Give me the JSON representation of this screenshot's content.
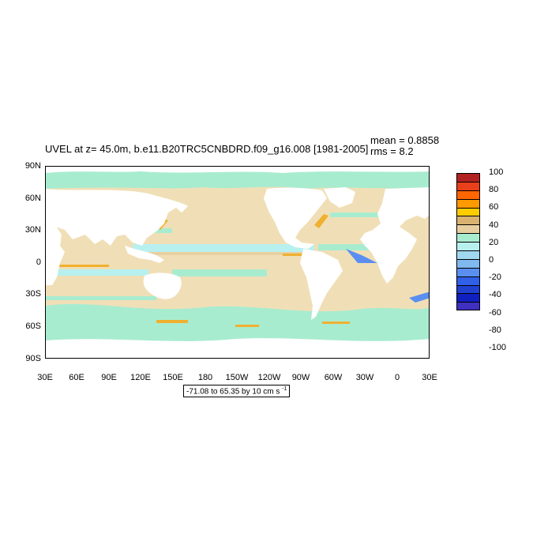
{
  "title": "UVEL at z=  45.0m, b.e11.B20TRC5CNBDRD.f09_g16.008 [1981-2005]",
  "stats": {
    "mean": "mean = 0.8858",
    "rms": "rms = 8.2"
  },
  "y_axis": {
    "ticks": [
      "90N",
      "60N",
      "30N",
      "0",
      "30S",
      "60S",
      "90S"
    ]
  },
  "x_axis": {
    "ticks": [
      "30E",
      "60E",
      "90E",
      "120E",
      "150E",
      "180",
      "150W",
      "120W",
      "90W",
      "60W",
      "30W",
      "0",
      "30E"
    ]
  },
  "range_label": "-71.08 to 65.35 by 10 cm s",
  "range_unit_exp": "-1",
  "colorbar": {
    "labels": [
      "100",
      "80",
      "60",
      "40",
      "20",
      "0",
      "-20",
      "-40",
      "-60",
      "-80",
      "-100"
    ],
    "colors": [
      "#b22222",
      "#e8401a",
      "#ff6600",
      "#ff9900",
      "#ffcc00",
      "#d9b26f",
      "#e8cfa0",
      "#a8ecd0",
      "#b8f0f0",
      "#a0d8f0",
      "#80b8f0",
      "#5a8ff0",
      "#3060e8",
      "#2040d0",
      "#1020c0",
      "#4030c0"
    ]
  },
  "colors": {
    "land": "#ffffff",
    "ocean_positive": "#f0dfb6",
    "ocean_negative": "#a8ecd0",
    "current_strong": "#f0b030",
    "current_west": "#5a8ff0"
  }
}
